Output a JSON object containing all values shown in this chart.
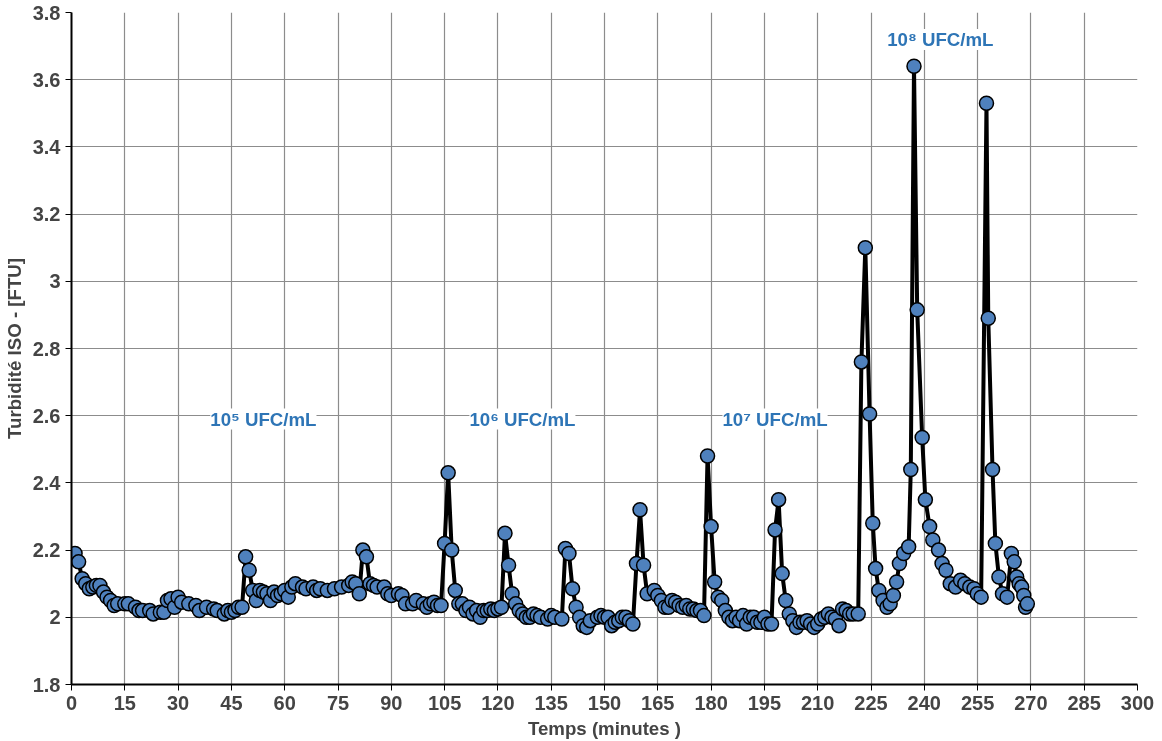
{
  "chart_data": {
    "type": "line",
    "xlabel": "Temps (minutes )",
    "ylabel": "Turbidité ISO - [FTU]",
    "xlim": [
      0,
      300
    ],
    "xticks": [
      0,
      15,
      30,
      45,
      60,
      75,
      90,
      105,
      120,
      135,
      150,
      165,
      180,
      195,
      210,
      225,
      240,
      255,
      270,
      285,
      300
    ],
    "ylim": [
      1.8,
      3.8
    ],
    "yticks": [
      1.8,
      2,
      2.2,
      2.4,
      2.6,
      2.8,
      3,
      3.2,
      3.4,
      3.6,
      3.8
    ],
    "grid": true,
    "marker": "circle",
    "line_style": "solid",
    "annotations": [
      "10⁵ UFC/mL",
      "10⁶ UFC/mL",
      "10⁷ UFC/mL",
      "10⁸ UFC/mL"
    ],
    "series": [
      {
        "color": "#4f81bd",
        "x": [
          1,
          2,
          3,
          4,
          5,
          6,
          7,
          8,
          9,
          10,
          11,
          12,
          13,
          15,
          16,
          18,
          19,
          20,
          22,
          23,
          25,
          26,
          27,
          28,
          29,
          30,
          31,
          33,
          35,
          36,
          38,
          40,
          41,
          43,
          44,
          45,
          46,
          47,
          48,
          49,
          50,
          51,
          52,
          53,
          54,
          55,
          56,
          57,
          58,
          59,
          60,
          61,
          62,
          63,
          65,
          66,
          68,
          69,
          70,
          72,
          74,
          76,
          78,
          79,
          80,
          81,
          82,
          83,
          84,
          85,
          86,
          88,
          89,
          90,
          92,
          93,
          94,
          96,
          97,
          99,
          100,
          101,
          102,
          103,
          104,
          105,
          106,
          107,
          108,
          109,
          110,
          111,
          112,
          113,
          114,
          115,
          116,
          117,
          118,
          119,
          120,
          121,
          122,
          123,
          124,
          125,
          126,
          127,
          128,
          129,
          130,
          131,
          132,
          134,
          135,
          136,
          138,
          139,
          140,
          141,
          142,
          143,
          144,
          145,
          146,
          148,
          149,
          150,
          151,
          152,
          153,
          154,
          155,
          156,
          157,
          158,
          159,
          160,
          161,
          162,
          164,
          165,
          166,
          167,
          168,
          169,
          170,
          171,
          172,
          173,
          174,
          175,
          176,
          177,
          178,
          179,
          180,
          181,
          182,
          183,
          184,
          185,
          186,
          187,
          188,
          189,
          190,
          191,
          192,
          193,
          194,
          195,
          196,
          197,
          198,
          199,
          200,
          201,
          202,
          203,
          204,
          205,
          206,
          207,
          208,
          209,
          210,
          211,
          212,
          213,
          214,
          215,
          216,
          217,
          218,
          219,
          220,
          221.4,
          222.3,
          223.4,
          224.6,
          225.5,
          226.3,
          227.2,
          228.4,
          229.5,
          230.4,
          231.3,
          232.2,
          233,
          234.2,
          235.6,
          236.2,
          237.1,
          238,
          239.4,
          240.3,
          241.5,
          242.4,
          244,
          245,
          246.1,
          247.3,
          248.8,
          250.2,
          251.4,
          252.8,
          254,
          254.9,
          256,
          257.5,
          258,
          259.2,
          260,
          261,
          262,
          263.3,
          264.5,
          265.3,
          266,
          266.7,
          267.4,
          268,
          268.5,
          269
        ],
        "values": [
          2.19,
          2.165,
          2.115,
          2.1,
          2.085,
          2.09,
          2.095,
          2.095,
          2.075,
          2.06,
          2.05,
          2.035,
          2.04,
          2.04,
          2.04,
          2.03,
          2.02,
          2.02,
          2.02,
          2.01,
          2.015,
          2.015,
          2.05,
          2.055,
          2.03,
          2.06,
          2.045,
          2.04,
          2.035,
          2.02,
          2.03,
          2.025,
          2.02,
          2.01,
          2.02,
          2.015,
          2.02,
          2.03,
          2.03,
          2.18,
          2.14,
          2.08,
          2.05,
          2.08,
          2.075,
          2.07,
          2.05,
          2.075,
          2.065,
          2.07,
          2.08,
          2.06,
          2.09,
          2.1,
          2.09,
          2.085,
          2.09,
          2.08,
          2.085,
          2.08,
          2.085,
          2.09,
          2.095,
          2.105,
          2.1,
          2.07,
          2.2,
          2.18,
          2.1,
          2.095,
          2.09,
          2.09,
          2.07,
          2.065,
          2.07,
          2.065,
          2.04,
          2.04,
          2.05,
          2.04,
          2.03,
          2.04,
          2.045,
          2.035,
          2.035,
          2.22,
          2.43,
          2.2,
          2.08,
          2.04,
          2.04,
          2.02,
          2.03,
          2.01,
          2.02,
          2.0,
          2.02,
          2.02,
          2.025,
          2.02,
          2.025,
          2.03,
          2.25,
          2.155,
          2.07,
          2.04,
          2.02,
          2.01,
          2.0,
          2.0,
          2.01,
          2.005,
          2.0,
          1.995,
          2.005,
          2.0,
          1.995,
          2.205,
          2.19,
          2.085,
          2.03,
          2.0,
          1.975,
          1.97,
          1.99,
          2.0,
          2.005,
          2.0,
          2.0,
          1.975,
          1.985,
          1.99,
          2.0,
          2.0,
          1.99,
          1.98,
          2.16,
          2.32,
          2.155,
          2.07,
          2.08,
          2.065,
          2.05,
          2.03,
          2.03,
          2.05,
          2.045,
          2.035,
          2.03,
          2.035,
          2.025,
          2.025,
          2.02,
          2.02,
          2.005,
          2.48,
          2.27,
          2.105,
          2.06,
          2.05,
          2.02,
          2.0,
          1.99,
          2.0,
          1.99,
          2.005,
          1.98,
          2.0,
          2.0,
          1.985,
          1.985,
          2.0,
          1.98,
          1.98,
          2.26,
          2.35,
          2.13,
          2.05,
          2.01,
          1.99,
          1.97,
          1.985,
          1.985,
          1.99,
          1.98,
          1.97,
          1.98,
          1.995,
          2.0,
          2.01,
          2.0,
          1.995,
          1.975,
          2.025,
          2.02,
          2.01,
          2.01,
          2.01,
          2.76,
          3.1,
          2.605,
          2.28,
          2.145,
          2.08,
          2.05,
          2.03,
          2.04,
          2.065,
          2.105,
          2.16,
          2.19,
          2.21,
          2.44,
          3.64,
          2.915,
          2.535,
          2.35,
          2.27,
          2.23,
          2.2,
          2.16,
          2.14,
          2.1,
          2.09,
          2.11,
          2.1,
          2.09,
          2.085,
          2.07,
          2.06,
          3.53,
          2.89,
          2.44,
          2.22,
          2.12,
          2.07,
          2.06,
          2.19,
          2.165,
          2.12,
          2.1,
          2.09,
          2.065,
          2.03,
          2.04
        ]
      }
    ]
  }
}
